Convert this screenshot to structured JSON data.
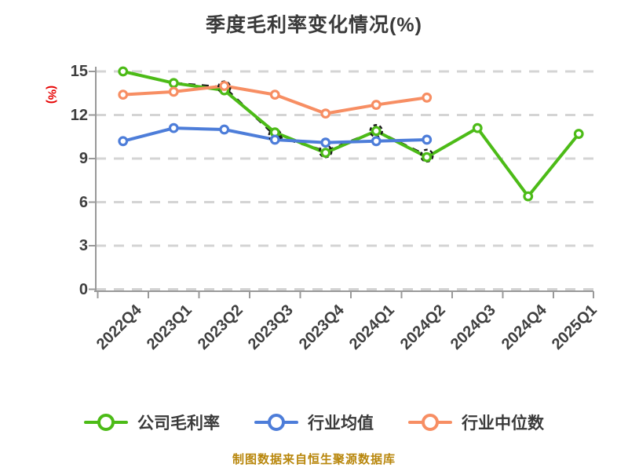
{
  "title": "季度毛利率变化情况(%)",
  "footer": "制图数据来自恒生聚源数据库",
  "colors": {
    "title_text": "#3a3a3a",
    "axis_text": "#3f3f3f",
    "y_axis_name_text": "#e60000",
    "axis_line": "#999999",
    "grid_line": "#d4d4d4",
    "footer_text": "#b8860b",
    "overlay_dash": "#1a1a1a",
    "marker_fill": "#ffffff"
  },
  "chart_data": {
    "type": "line",
    "title": "季度毛利率变化情况(%)",
    "xlabel": "",
    "ylabel": "(%)",
    "categories": [
      "2022Q4",
      "2023Q1",
      "2023Q2",
      "2023Q3",
      "2023Q4",
      "2024Q1",
      "2024Q2",
      "2024Q3",
      "2024Q4",
      "2025Q1"
    ],
    "series": [
      {
        "name": "公司毛利率",
        "color": "#4cbb17",
        "values": [
          15.0,
          14.2,
          13.7,
          10.8,
          9.4,
          10.9,
          9.1,
          11.1,
          6.4,
          10.7
        ]
      },
      {
        "name": "行业均值",
        "color": "#4d7dd9",
        "values": [
          10.2,
          11.1,
          11.0,
          10.3,
          10.1,
          10.2,
          10.3
        ]
      },
      {
        "name": "行业中位数",
        "color": "#f78e63",
        "values": [
          13.4,
          13.6,
          14.0,
          13.4,
          12.1,
          12.7,
          13.2
        ]
      }
    ],
    "unlabeled_overlay": {
      "style": "black-dashed-follows-company-line",
      "values": [
        15.0,
        14.2,
        13.9,
        10.6,
        9.5,
        10.9,
        9.2
      ],
      "marker_ring_indices": [
        2,
        3,
        4,
        5,
        6
      ]
    },
    "ylim": [
      0,
      15
    ],
    "yticks": [
      0,
      3,
      6,
      9,
      12,
      15
    ],
    "grid": "dashed-horizontal",
    "legend_position": "bottom"
  }
}
